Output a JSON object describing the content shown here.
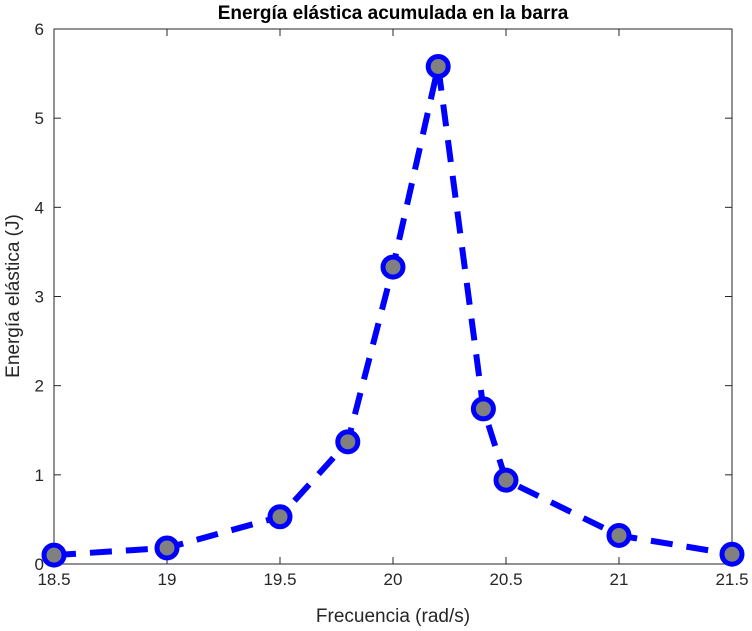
{
  "chart_data": {
    "type": "line",
    "title": "Energía elástica acumulada en la barra",
    "xlabel": "Frecuencia (rad/s)",
    "ylabel": "Energía elástica (J)",
    "xlim": [
      18.5,
      21.5
    ],
    "ylim": [
      0,
      6
    ],
    "xticks": [
      18.5,
      19,
      19.5,
      20,
      20.5,
      21,
      21.5
    ],
    "xtick_labels": [
      "18.5",
      "19",
      "19.5",
      "20",
      "20.5",
      "21",
      "21.5"
    ],
    "yticks": [
      0,
      1,
      2,
      3,
      4,
      5,
      6
    ],
    "ytick_labels": [
      "0",
      "1",
      "2",
      "3",
      "4",
      "5",
      "6"
    ],
    "grid": false,
    "series": [
      {
        "x": [
          18.5,
          19.0,
          19.5,
          19.8,
          20.0,
          20.2,
          20.4,
          20.5,
          21.0,
          21.5
        ],
        "y": [
          0.1,
          0.18,
          0.53,
          1.37,
          3.33,
          5.58,
          1.74,
          0.94,
          0.32,
          0.11
        ],
        "line_color": "#0000ff",
        "line_style": "dashed",
        "marker": "circle",
        "marker_edge_color": "#0000ff",
        "marker_face_color": "#808080"
      }
    ]
  }
}
